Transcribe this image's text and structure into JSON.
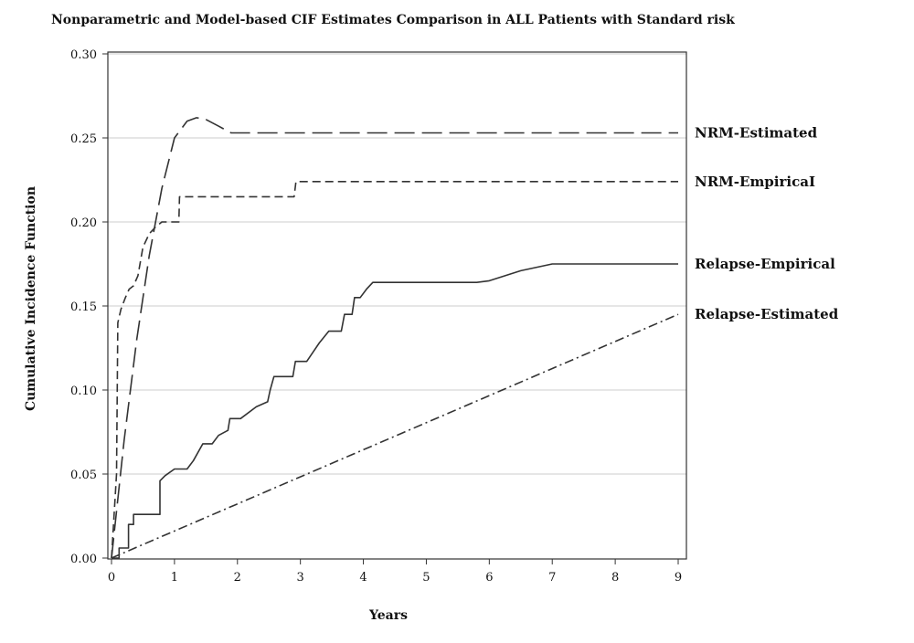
{
  "chart_data": {
    "type": "line",
    "title": "Nonparametric and Model-based CIF Estimates Comparison in ALL Patients with Standard risk",
    "xlabel": "Years",
    "ylabel": "Cumulative Incidence Function",
    "xlim": [
      0,
      9
    ],
    "ylim": [
      0,
      0.3
    ],
    "xticks": [
      "0",
      "1",
      "2",
      "3",
      "4",
      "5",
      "6",
      "7",
      "8",
      "9"
    ],
    "yticks": [
      "0.00",
      "0.05",
      "0.10",
      "0.15",
      "0.20",
      "0.25",
      "0.30"
    ],
    "grid": "horizontal",
    "legend": "right, labels at line ends",
    "series": [
      {
        "name": "NRM-Estimated",
        "style": "long-dash",
        "color": "#333333",
        "points": [
          [
            0,
            0
          ],
          [
            0.2,
            0.07
          ],
          [
            0.4,
            0.13
          ],
          [
            0.6,
            0.18
          ],
          [
            0.8,
            0.22
          ],
          [
            1.0,
            0.25
          ],
          [
            1.2,
            0.26
          ],
          [
            1.35,
            0.262
          ],
          [
            1.5,
            0.261
          ],
          [
            1.7,
            0.257
          ],
          [
            1.9,
            0.253
          ],
          [
            2.5,
            0.253
          ],
          [
            3,
            0.253
          ],
          [
            9,
            0.253
          ]
        ]
      },
      {
        "name": "NRM-EmpiricaI",
        "style": "short-dash",
        "color": "#333333",
        "points": [
          [
            0,
            0
          ],
          [
            0.08,
            0.05
          ],
          [
            0.1,
            0.14
          ],
          [
            0.15,
            0.148
          ],
          [
            0.22,
            0.155
          ],
          [
            0.28,
            0.16
          ],
          [
            0.35,
            0.162
          ],
          [
            0.42,
            0.168
          ],
          [
            0.5,
            0.185
          ],
          [
            0.6,
            0.193
          ],
          [
            0.7,
            0.197
          ],
          [
            0.8,
            0.2
          ],
          [
            1.07,
            0.2
          ],
          [
            1.08,
            0.215
          ],
          [
            2.9,
            0.215
          ],
          [
            2.93,
            0.224
          ],
          [
            9,
            0.224
          ]
        ]
      },
      {
        "name": "Relapse-Empirical",
        "style": "solid",
        "color": "#333333",
        "points": [
          [
            0,
            0
          ],
          [
            0.12,
            0
          ],
          [
            0.12,
            0.006
          ],
          [
            0.27,
            0.006
          ],
          [
            0.27,
            0.02
          ],
          [
            0.35,
            0.02
          ],
          [
            0.35,
            0.026
          ],
          [
            0.77,
            0.026
          ],
          [
            0.77,
            0.046
          ],
          [
            0.85,
            0.049
          ],
          [
            1.0,
            0.053
          ],
          [
            1.2,
            0.053
          ],
          [
            1.3,
            0.058
          ],
          [
            1.45,
            0.068
          ],
          [
            1.6,
            0.068
          ],
          [
            1.7,
            0.073
          ],
          [
            1.85,
            0.076
          ],
          [
            1.88,
            0.083
          ],
          [
            2.05,
            0.083
          ],
          [
            2.3,
            0.09
          ],
          [
            2.48,
            0.093
          ],
          [
            2.52,
            0.1
          ],
          [
            2.58,
            0.108
          ],
          [
            2.88,
            0.108
          ],
          [
            2.92,
            0.117
          ],
          [
            3.1,
            0.117
          ],
          [
            3.3,
            0.128
          ],
          [
            3.45,
            0.135
          ],
          [
            3.65,
            0.135
          ],
          [
            3.7,
            0.145
          ],
          [
            3.82,
            0.145
          ],
          [
            3.86,
            0.155
          ],
          [
            3.95,
            0.155
          ],
          [
            4.05,
            0.16
          ],
          [
            4.15,
            0.164
          ],
          [
            5.0,
            0.164
          ],
          [
            5.8,
            0.164
          ],
          [
            6.0,
            0.165
          ],
          [
            6.5,
            0.171
          ],
          [
            7.0,
            0.175
          ],
          [
            7.4,
            0.175
          ],
          [
            9,
            0.175
          ]
        ]
      },
      {
        "name": "Relapse-Estimated",
        "style": "dash-dot",
        "color": "#333333",
        "points": [
          [
            0,
            0
          ],
          [
            9,
            0.145
          ]
        ]
      }
    ]
  }
}
